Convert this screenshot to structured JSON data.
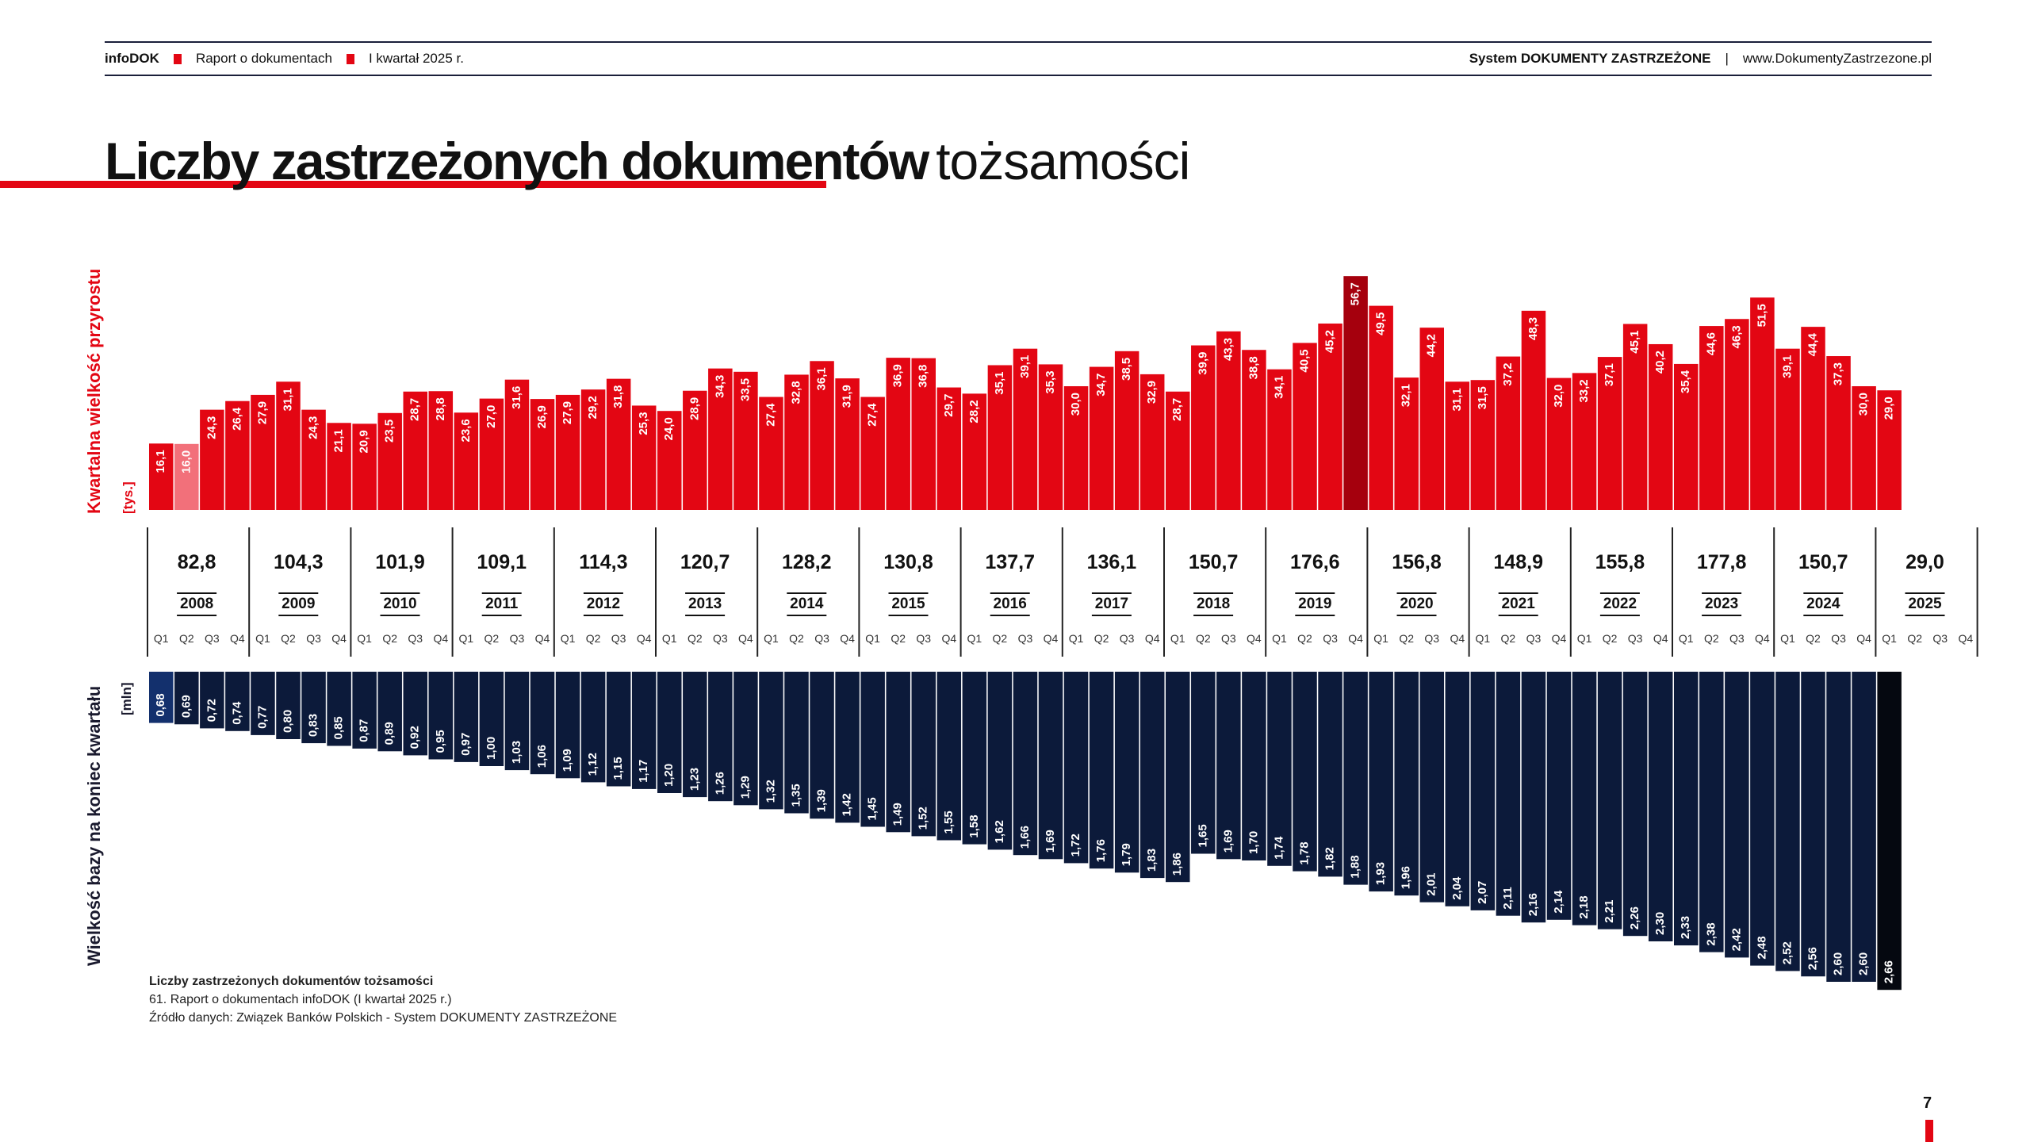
{
  "header": {
    "brand": "infoDOK",
    "report": "Raport o dokumentach",
    "period": "I kwartał 2025 r.",
    "system": "System DOKUMENTY ZASTRZEŻONE",
    "separator": "|",
    "website": "www.DokumentyZastrzezone.pl"
  },
  "title": {
    "bold": "Liczby zastrzeżonych dokumentów",
    "light": "tożsamości"
  },
  "colors": {
    "accent": "#e30613",
    "bar_red": "#e30613",
    "bar_red_highlight": "#a5000d",
    "bar_pink": "#f2707a",
    "bar_navy": "#0c1a3a",
    "bar_navy_first": "#13306d",
    "bar_black": "#050810"
  },
  "chart_data": [
    {
      "type": "bar",
      "ylabel": "Kwartalna wielkość przyrostu",
      "unit": "[tys.]",
      "quarter_labels": [
        "Q1",
        "Q2",
        "Q3",
        "Q4"
      ],
      "years": [
        "2008",
        "2009",
        "2010",
        "2011",
        "2012",
        "2013",
        "2014",
        "2015",
        "2016",
        "2017",
        "2018",
        "2019",
        "2020",
        "2021",
        "2022",
        "2023",
        "2024",
        "2025"
      ],
      "year_totals": [
        "82,8",
        "104,3",
        "101,9",
        "109,1",
        "114,3",
        "120,7",
        "128,2",
        "130,8",
        "137,7",
        "136,1",
        "150,7",
        "176,6",
        "156,8",
        "148,9",
        "155,8",
        "177,8",
        "150,7",
        "29,0"
      ],
      "values": [
        16.1,
        16.0,
        24.3,
        26.4,
        27.9,
        31.1,
        24.3,
        21.1,
        20.9,
        23.5,
        28.7,
        28.8,
        23.6,
        27.0,
        31.6,
        26.9,
        27.9,
        29.2,
        31.8,
        25.3,
        24.0,
        28.9,
        34.3,
        33.5,
        27.4,
        32.8,
        36.1,
        31.9,
        27.4,
        36.9,
        36.8,
        29.7,
        28.2,
        35.1,
        39.1,
        35.3,
        30.0,
        34.7,
        38.5,
        32.9,
        28.7,
        39.9,
        43.3,
        38.8,
        34.1,
        40.5,
        45.2,
        56.7,
        49.5,
        32.1,
        44.2,
        31.1,
        31.5,
        37.2,
        48.3,
        32.0,
        33.2,
        37.1,
        45.1,
        40.2,
        35.4,
        44.6,
        46.3,
        51.5,
        39.1,
        44.4,
        37.3,
        30.0,
        29.0
      ],
      "value_labels": [
        "16,1",
        "16,0",
        "24,3",
        "26,4",
        "27,9",
        "31,1",
        "24,3",
        "21,1",
        "20,9",
        "23,5",
        "28,7",
        "28,8",
        "23,6",
        "27,0",
        "31,6",
        "26,9",
        "27,9",
        "29,2",
        "31,8",
        "25,3",
        "24,0",
        "28,9",
        "34,3",
        "33,5",
        "27,4",
        "32,8",
        "36,1",
        "31,9",
        "27,4",
        "36,9",
        "36,8",
        "29,7",
        "28,2",
        "35,1",
        "39,1",
        "35,3",
        "30,0",
        "34,7",
        "38,5",
        "32,9",
        "28,7",
        "39,9",
        "43,3",
        "38,8",
        "34,1",
        "40,5",
        "45,2",
        "56,7",
        "49,5",
        "32,1",
        "44,2",
        "31,1",
        "31,5",
        "37,2",
        "48,3",
        "32,0",
        "33,2",
        "37,1",
        "45,1",
        "40,2",
        "35,4",
        "44,6",
        "46,3",
        "51,5",
        "39,1",
        "44,4",
        "37,3",
        "30,0",
        "29,0"
      ],
      "highlight": {
        "pink_index": 1,
        "dark_index": 47
      }
    },
    {
      "type": "bar",
      "ylabel": "Wielkość bazy na koniec kwartału",
      "unit": "[mln]",
      "values": [
        0.68,
        0.69,
        0.72,
        0.74,
        0.77,
        0.8,
        0.83,
        0.85,
        0.87,
        0.89,
        0.92,
        0.95,
        0.97,
        1.0,
        1.03,
        1.06,
        1.09,
        1.12,
        1.15,
        1.17,
        1.2,
        1.23,
        1.26,
        1.29,
        1.32,
        1.35,
        1.39,
        1.42,
        1.45,
        1.49,
        1.52,
        1.55,
        1.58,
        1.62,
        1.66,
        1.69,
        1.72,
        1.76,
        1.79,
        1.83,
        1.86,
        1.65,
        1.69,
        1.7,
        1.74,
        1.78,
        1.82,
        1.88,
        1.93,
        1.96,
        2.01,
        2.04,
        2.07,
        2.11,
        2.16,
        2.14,
        2.18,
        2.21,
        2.26,
        2.3,
        2.33,
        2.38,
        2.42,
        2.48,
        2.52,
        2.56,
        2.6,
        2.6,
        2.66
      ],
      "value_labels": [
        "0,68",
        "0,69",
        "0,72",
        "0,74",
        "0,77",
        "0,80",
        "0,83",
        "0,85",
        "0,87",
        "0,89",
        "0,92",
        "0,95",
        "0,97",
        "1,00",
        "1,03",
        "1,06",
        "1,09",
        "1,12",
        "1,15",
        "1,17",
        "1,20",
        "1,23",
        "1,26",
        "1,29",
        "1,32",
        "1,35",
        "1,39",
        "1,42",
        "1,45",
        "1,49",
        "1,52",
        "1,55",
        "1,58",
        "1,62",
        "1,66",
        "1,69",
        "1,72",
        "1,76",
        "1,79",
        "1,83",
        "1,86",
        "1,65",
        "1,69",
        "1,70",
        "1,74",
        "1,78",
        "1,82",
        "1,88",
        "1,93",
        "1,96",
        "2,01",
        "2,04",
        "2,07",
        "2,11",
        "2,16",
        "2,14",
        "2,18",
        "2,21",
        "2,26",
        "2,30",
        "2,33",
        "2,38",
        "2,42",
        "2,48",
        "2,52",
        "2,56",
        "2,60",
        "2,60",
        "2,66"
      ]
    }
  ],
  "notes": {
    "line1": "Liczby zastrzeżonych dokumentów tożsamości",
    "line2": "61. Raport o dokumentach infoDOK (I kwartał 2025 r.)",
    "line3": "Źródło danych: Związek Banków Polskich - System DOKUMENTY ZASTRZEŻONE"
  },
  "page_number": "7"
}
